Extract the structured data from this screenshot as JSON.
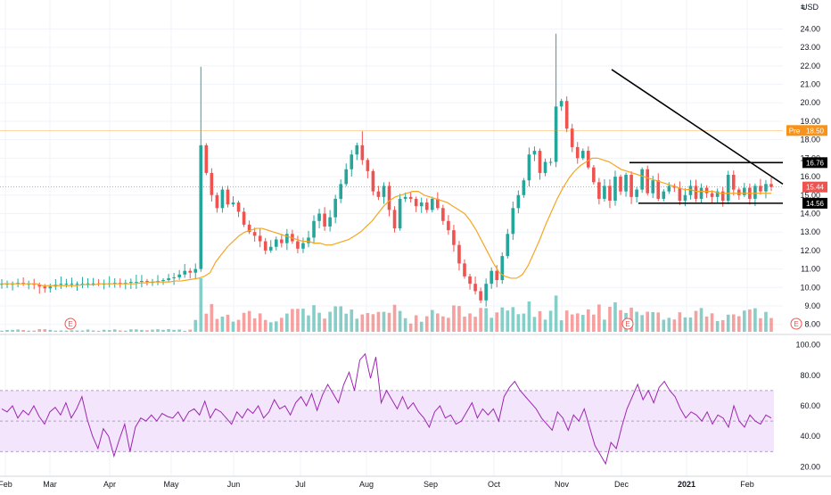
{
  "currency": "USD",
  "chart_data": [
    {
      "type": "candlestick",
      "title": "",
      "x_labels": [
        "Feb",
        "Mar",
        "Apr",
        "May",
        "Jun",
        "Jul",
        "Aug",
        "Sep",
        "Oct",
        "Nov",
        "Dec",
        "2021",
        "Feb"
      ],
      "y_ticks": [
        "24.00",
        "23.00",
        "22.00",
        "21.00",
        "20.00",
        "19.00",
        "18.00",
        "17.00",
        "16.00",
        "15.00",
        "14.00",
        "13.00",
        "12.00",
        "11.00",
        "10.00",
        "9.00",
        "8.00"
      ],
      "ylim": [
        7.6,
        24.6
      ],
      "grid": true,
      "price_path_close": [
        10.2,
        10.2,
        10.2,
        10.25,
        10.2,
        10.2,
        10.15,
        10.05,
        9.95,
        10.05,
        10.15,
        10.2,
        10.2,
        10.2,
        10.2,
        10.2,
        10.22,
        10.22,
        10.2,
        10.2,
        10.22,
        10.25,
        10.22,
        10.25,
        10.3,
        10.3,
        10.35,
        10.3,
        10.3,
        10.35,
        10.4,
        10.5,
        10.55,
        10.7,
        10.9,
        10.8,
        11.0,
        17.7,
        16.2,
        15.0,
        14.3,
        15.3,
        14.5,
        14.6,
        14.1,
        13.4,
        13.0,
        12.8,
        12.5,
        12.0,
        12.2,
        12.6,
        12.4,
        12.9,
        12.5,
        12.1,
        12.4,
        12.7,
        13.6,
        14.0,
        13.3,
        13.8,
        14.8,
        15.6,
        16.4,
        17.2,
        17.7,
        16.9,
        16.3,
        15.2,
        14.9,
        15.5,
        14.2,
        13.2,
        14.8,
        14.9,
        14.8,
        14.4,
        14.6,
        14.2,
        14.8,
        14.3,
        13.6,
        13.1,
        12.3,
        11.3,
        10.6,
        10.2,
        9.8,
        9.3,
        10.2,
        10.9,
        10.4,
        11.7,
        12.9,
        14.3,
        15.0,
        15.8,
        17.2,
        17.4,
        16.2,
        16.8,
        16.8,
        19.8,
        20.1,
        18.6,
        17.6,
        17.0,
        17.4,
        16.5,
        15.7,
        14.8,
        15.5,
        14.7,
        16.0,
        15.2,
        16.1,
        14.9,
        15.3,
        16.4,
        15.1,
        15.8,
        14.8,
        15.2,
        15.5,
        15.4,
        14.7,
        15.0,
        15.5,
        14.8,
        15.4,
        15.1,
        14.9,
        15.2,
        14.7,
        16.1,
        15.3,
        15.0,
        15.4,
        14.8,
        15.5,
        15.2,
        15.6,
        15.44
      ],
      "ma_path": [
        10.2,
        10.2,
        10.2,
        10.2,
        10.2,
        10.2,
        10.2,
        10.1,
        10.1,
        10.1,
        10.1,
        10.1,
        10.1,
        10.1,
        10.15,
        10.15,
        10.15,
        10.2,
        10.2,
        10.2,
        10.2,
        10.2,
        10.2,
        10.2,
        10.25,
        10.25,
        10.3,
        10.3,
        10.3,
        10.3,
        10.35,
        10.35,
        10.4,
        10.45,
        10.5,
        10.6,
        10.8,
        11.4,
        11.8,
        12.2,
        12.5,
        12.8,
        13.0,
        13.1,
        13.2,
        13.2,
        13.1,
        13.0,
        12.9,
        12.8,
        12.7,
        12.6,
        12.5,
        12.5,
        12.4,
        12.4,
        12.3,
        12.3,
        12.4,
        12.5,
        12.6,
        12.8,
        13.0,
        13.3,
        13.6,
        14.0,
        14.4,
        14.7,
        14.9,
        15.0,
        15.1,
        15.2,
        15.2,
        15.0,
        14.9,
        14.8,
        14.7,
        14.6,
        14.4,
        14.2,
        14.0,
        13.6,
        13.1,
        12.5,
        11.9,
        11.3,
        10.8,
        10.6,
        10.5,
        10.5,
        10.7,
        11.2,
        11.9,
        12.6,
        13.4,
        14.1,
        14.8,
        15.4,
        15.9,
        16.3,
        16.6,
        16.8,
        17.0,
        17.0,
        16.9,
        16.8,
        16.6,
        16.4,
        16.3,
        16.2,
        16.1,
        16.0,
        15.9,
        15.8,
        15.7,
        15.6,
        15.5,
        15.4,
        15.3,
        15.3,
        15.2,
        15.2,
        15.2,
        15.2,
        15.1,
        15.1,
        15.1,
        15.1,
        15.1,
        15.1,
        15.1,
        15.1,
        15.1,
        15.1
      ],
      "price_labels": {
        "resistance": "16.76",
        "support": "14.56",
        "current": "15.44",
        "premarket_prefix": "Pre",
        "premarket": "18.50"
      },
      "colors": {
        "up": "#26a69a",
        "down": "#ef5350",
        "ma": "#f5a623",
        "trendline": "#000000",
        "premarket": "#f7931a",
        "rsi": "#9c27b0",
        "rsi_band": "#f3e5fc"
      },
      "earnings_marker": "E"
    },
    {
      "type": "line",
      "title": "",
      "y_ticks": [
        "100.00",
        "80.00",
        "60.00",
        "40.00",
        "20.00"
      ],
      "ylim": [
        15,
        105
      ],
      "band": [
        30,
        70
      ],
      "rsi_path": [
        58,
        56,
        60,
        52,
        57,
        54,
        60,
        53,
        48,
        56,
        59,
        54,
        62,
        52,
        58,
        66,
        51,
        40,
        32,
        45,
        40,
        27,
        38,
        48,
        30,
        46,
        52,
        50,
        54,
        50,
        55,
        53,
        52,
        56,
        50,
        56,
        58,
        54,
        63,
        52,
        58,
        56,
        52,
        48,
        56,
        52,
        58,
        55,
        60,
        52,
        56,
        64,
        58,
        60,
        54,
        62,
        66,
        60,
        68,
        57,
        67,
        74,
        68,
        62,
        74,
        82,
        70,
        90,
        94,
        78,
        92,
        62,
        70,
        64,
        58,
        66,
        58,
        62,
        56,
        52,
        46,
        56,
        60,
        52,
        54,
        48,
        50,
        56,
        62,
        52,
        58,
        54,
        58,
        50,
        66,
        72,
        76,
        70,
        66,
        62,
        58,
        52,
        48,
        44,
        56,
        52,
        44,
        54,
        50,
        58,
        46,
        34,
        28,
        22,
        36,
        32,
        46,
        58,
        66,
        74,
        64,
        70,
        62,
        72,
        76,
        70,
        66,
        58,
        52,
        56,
        54,
        50,
        56,
        48,
        54,
        52,
        46,
        60,
        50,
        46,
        54,
        50,
        48,
        54,
        52
      ],
      "x_labels": [
        "Feb",
        "Mar",
        "Apr",
        "May",
        "Jun",
        "Jul",
        "Aug",
        "Sep",
        "Oct",
        "Nov",
        "Dec",
        "2021",
        "Feb"
      ]
    }
  ]
}
